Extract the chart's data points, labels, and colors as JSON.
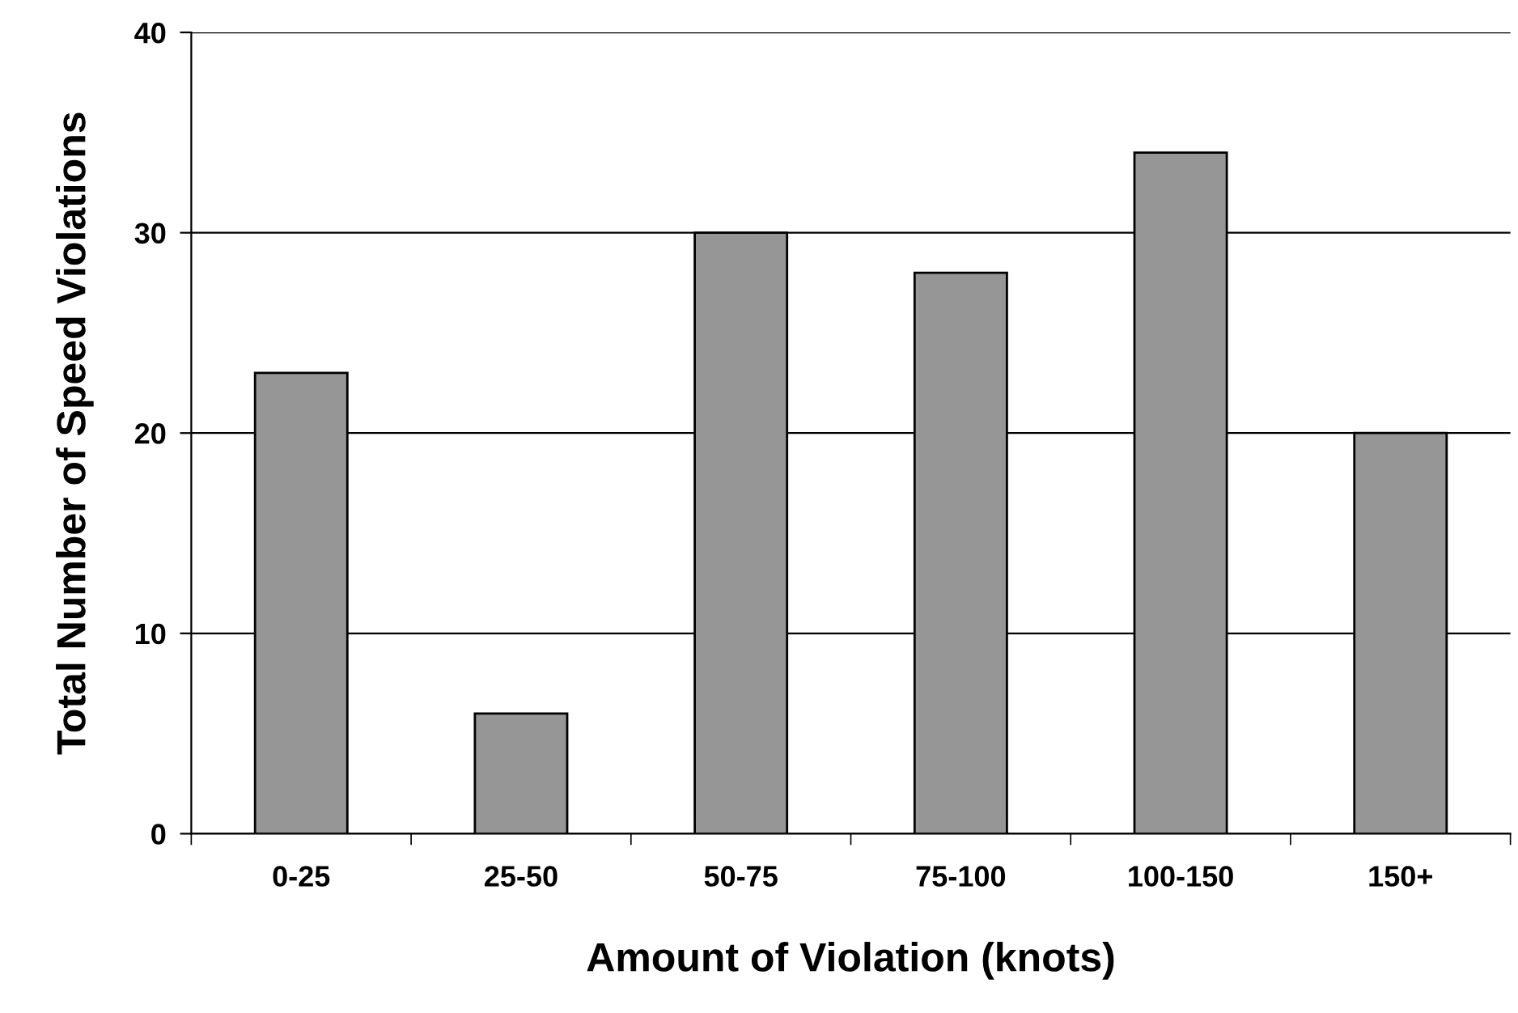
{
  "chart_data": {
    "type": "bar",
    "xlabel": "Amount of Violation (knots)",
    "ylabel": "Total Number of Speed Violations",
    "categories": [
      "0-25",
      "25-50",
      "50-75",
      "75-100",
      "100-150",
      "150+"
    ],
    "values": [
      23,
      6,
      30,
      28,
      34,
      20
    ],
    "color": "#969696",
    "ylim": [
      0,
      40
    ],
    "yticks": [
      0,
      10,
      20,
      30,
      40
    ],
    "grid": "y",
    "legend": false
  }
}
